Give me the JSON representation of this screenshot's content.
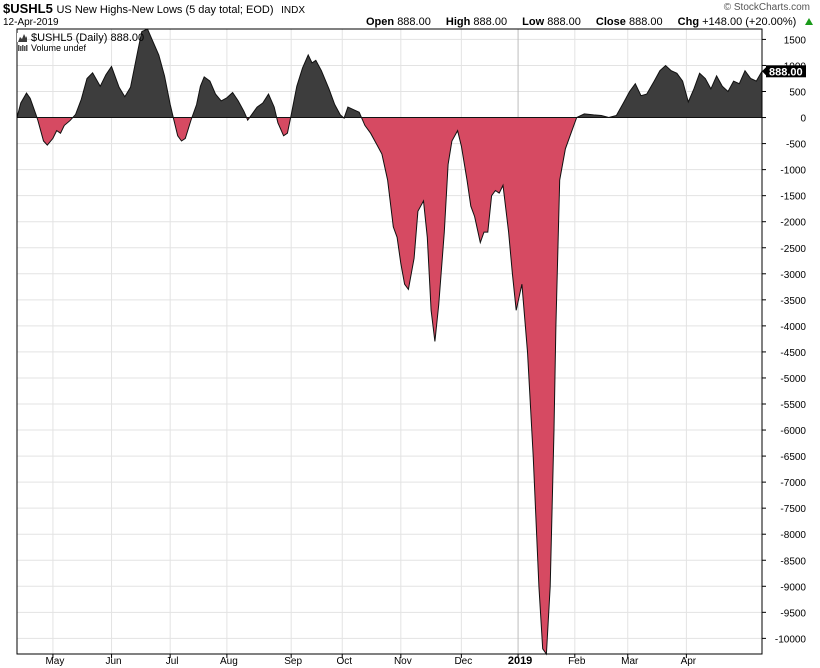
{
  "header": {
    "symbol": "$USHL5",
    "description": "US New Highs-New Lows (5 day total; EOD)",
    "exchange": "INDX",
    "date": "12-Apr-2019",
    "open_label": "Open",
    "open": "888.00",
    "high_label": "High",
    "high": "888.00",
    "low_label": "Low",
    "low": "888.00",
    "close_label": "Close",
    "close": "888.00",
    "chg_label": "Chg",
    "chg": "+148.00 (+20.00%)",
    "brand": "© StockCharts.com"
  },
  "legend": {
    "series": "$USHL5 (Daily) 888.00",
    "volume": "Volume undef"
  },
  "colors": {
    "positive_fill": "#3d3d3d",
    "negative_fill": "#d64a62",
    "grid": "#e3e3e3",
    "axis": "#000000",
    "badge_bg": "#000000",
    "badge_text": "#ffffff",
    "up_arrow": "#1a9a1a"
  },
  "chart_data": {
    "type": "area",
    "title": "$USHL5 US New Highs-New Lows (5 day total; EOD)",
    "ylim": [
      -10300,
      1700
    ],
    "yticks": [
      1500,
      1000,
      500,
      0,
      -500,
      -1000,
      -1500,
      -2000,
      -2500,
      -3000,
      -3500,
      -4000,
      -4500,
      -5000,
      -5500,
      -6000,
      -6500,
      -7000,
      -7500,
      -8000,
      -8500,
      -9000,
      -9500,
      -10000
    ],
    "ytick_labels": [
      "1500",
      "1000",
      "500",
      "0",
      "-500",
      "-1000",
      "-1500",
      "-2000",
      "-2500",
      "-3000",
      "-3500",
      "-4000",
      "-4500",
      "-5000",
      "-5500",
      "-6000",
      "-6500",
      "-7000",
      "-7500",
      "-8000",
      "-8500",
      "-9000",
      "-9500",
      "-10000"
    ],
    "last_value": "888.00",
    "x_start": "2018-04-12",
    "x_end": "2019-04-12",
    "x_ticks": [
      {
        "label": "May",
        "date": "2018-05-01"
      },
      {
        "label": "Jun",
        "date": "2018-06-01"
      },
      {
        "label": "Jul",
        "date": "2018-07-02"
      },
      {
        "label": "Aug",
        "date": "2018-08-01"
      },
      {
        "label": "Sep",
        "date": "2018-09-04"
      },
      {
        "label": "Oct",
        "date": "2018-10-01"
      },
      {
        "label": "Nov",
        "date": "2018-11-01"
      },
      {
        "label": "Dec",
        "date": "2018-12-03"
      },
      {
        "label": "2019",
        "date": "2019-01-02",
        "bold": true
      },
      {
        "label": "Feb",
        "date": "2019-02-01"
      },
      {
        "label": "Mar",
        "date": "2019-03-01"
      },
      {
        "label": "Apr",
        "date": "2019-04-01"
      }
    ],
    "points": [
      [
        "2018-04-12",
        0
      ],
      [
        "2018-04-14",
        280
      ],
      [
        "2018-04-17",
        470
      ],
      [
        "2018-04-19",
        370
      ],
      [
        "2018-04-22",
        60
      ],
      [
        "2018-04-23",
        -50
      ],
      [
        "2018-04-26",
        -450
      ],
      [
        "2018-04-28",
        -530
      ],
      [
        "2018-05-01",
        -400
      ],
      [
        "2018-05-03",
        -250
      ],
      [
        "2018-05-05",
        -300
      ],
      [
        "2018-05-07",
        -150
      ],
      [
        "2018-05-10",
        -60
      ],
      [
        "2018-05-13",
        60
      ],
      [
        "2018-05-16",
        350
      ],
      [
        "2018-05-19",
        750
      ],
      [
        "2018-05-22",
        860
      ],
      [
        "2018-05-26",
        600
      ],
      [
        "2018-05-29",
        820
      ],
      [
        "2018-06-01",
        980
      ],
      [
        "2018-06-05",
        580
      ],
      [
        "2018-06-08",
        400
      ],
      [
        "2018-06-11",
        580
      ],
      [
        "2018-06-15",
        1300
      ],
      [
        "2018-06-17",
        1650
      ],
      [
        "2018-06-20",
        1700
      ],
      [
        "2018-06-23",
        1450
      ],
      [
        "2018-06-26",
        1200
      ],
      [
        "2018-06-29",
        800
      ],
      [
        "2018-07-02",
        250
      ],
      [
        "2018-07-04",
        -50
      ],
      [
        "2018-07-06",
        -350
      ],
      [
        "2018-07-08",
        -450
      ],
      [
        "2018-07-10",
        -400
      ],
      [
        "2018-07-13",
        -50
      ],
      [
        "2018-07-16",
        250
      ],
      [
        "2018-07-18",
        600
      ],
      [
        "2018-07-20",
        780
      ],
      [
        "2018-07-23",
        700
      ],
      [
        "2018-07-26",
        450
      ],
      [
        "2018-07-29",
        320
      ],
      [
        "2018-08-01",
        380
      ],
      [
        "2018-08-04",
        480
      ],
      [
        "2018-08-07",
        320
      ],
      [
        "2018-08-10",
        120
      ],
      [
        "2018-08-12",
        -50
      ],
      [
        "2018-08-14",
        50
      ],
      [
        "2018-08-17",
        200
      ],
      [
        "2018-08-20",
        280
      ],
      [
        "2018-08-23",
        450
      ],
      [
        "2018-08-26",
        200
      ],
      [
        "2018-08-28",
        -100
      ],
      [
        "2018-08-31",
        -350
      ],
      [
        "2018-09-02",
        -300
      ],
      [
        "2018-09-04",
        50
      ],
      [
        "2018-09-07",
        600
      ],
      [
        "2018-09-10",
        950
      ],
      [
        "2018-09-13",
        1200
      ],
      [
        "2018-09-15",
        1050
      ],
      [
        "2018-09-17",
        1100
      ],
      [
        "2018-09-20",
        900
      ],
      [
        "2018-09-24",
        550
      ],
      [
        "2018-09-27",
        250
      ],
      [
        "2018-09-30",
        50
      ],
      [
        "2018-10-02",
        -10
      ],
      [
        "2018-10-04",
        200
      ],
      [
        "2018-10-07",
        150
      ],
      [
        "2018-10-10",
        100
      ],
      [
        "2018-10-13",
        -150
      ],
      [
        "2018-10-16",
        -300
      ],
      [
        "2018-10-19",
        -500
      ],
      [
        "2018-10-22",
        -700
      ],
      [
        "2018-10-25",
        -1200
      ],
      [
        "2018-10-28",
        -2100
      ],
      [
        "2018-10-30",
        -2300
      ],
      [
        "2018-11-01",
        -2800
      ],
      [
        "2018-11-03",
        -3200
      ],
      [
        "2018-11-05",
        -3300
      ],
      [
        "2018-11-08",
        -2700
      ],
      [
        "2018-11-10",
        -1800
      ],
      [
        "2018-11-13",
        -1600
      ],
      [
        "2018-11-15",
        -2300
      ],
      [
        "2018-11-17",
        -3700
      ],
      [
        "2018-11-19",
        -4300
      ],
      [
        "2018-11-21",
        -3600
      ],
      [
        "2018-11-24",
        -2200
      ],
      [
        "2018-11-26",
        -900
      ],
      [
        "2018-11-28",
        -450
      ],
      [
        "2018-12-01",
        -250
      ],
      [
        "2018-12-03",
        -550
      ],
      [
        "2018-12-06",
        -1200
      ],
      [
        "2018-12-08",
        -1700
      ],
      [
        "2018-12-10",
        -1900
      ],
      [
        "2018-12-13",
        -2400
      ],
      [
        "2018-12-15",
        -2200
      ],
      [
        "2018-12-17",
        -2200
      ],
      [
        "2018-12-19",
        -1500
      ],
      [
        "2018-12-21",
        -1400
      ],
      [
        "2018-12-23",
        -1450
      ],
      [
        "2018-12-25",
        -1300
      ],
      [
        "2018-12-28",
        -2200
      ],
      [
        "2018-12-30",
        -3000
      ],
      [
        "2019-01-01",
        -3700
      ],
      [
        "2019-01-04",
        -3200
      ],
      [
        "2019-01-07",
        -4500
      ],
      [
        "2019-01-10",
        -6500
      ],
      [
        "2019-01-13",
        -9000
      ],
      [
        "2019-01-15",
        -10200
      ],
      [
        "2019-01-17",
        -10300
      ],
      [
        "2019-01-19",
        -9000
      ],
      [
        "2019-01-21",
        -6000
      ],
      [
        "2019-01-22",
        -4000
      ],
      [
        "2019-01-24",
        -1200
      ],
      [
        "2019-01-27",
        -600
      ],
      [
        "2019-01-30",
        -300
      ],
      [
        "2019-02-02",
        0
      ],
      [
        "2019-02-06",
        70
      ],
      [
        "2019-02-11",
        50
      ],
      [
        "2019-02-15",
        40
      ],
      [
        "2019-02-19",
        0
      ],
      [
        "2019-02-23",
        40
      ],
      [
        "2019-02-27",
        300
      ],
      [
        "2019-03-02",
        500
      ],
      [
        "2019-03-05",
        650
      ],
      [
        "2019-03-08",
        420
      ],
      [
        "2019-03-11",
        450
      ],
      [
        "2019-03-15",
        700
      ],
      [
        "2019-03-18",
        900
      ],
      [
        "2019-03-21",
        1000
      ],
      [
        "2019-03-24",
        900
      ],
      [
        "2019-03-27",
        850
      ],
      [
        "2019-03-30",
        700
      ],
      [
        "2019-04-02",
        300
      ],
      [
        "2019-04-05",
        550
      ],
      [
        "2019-04-08",
        850
      ],
      [
        "2019-04-11",
        750
      ],
      [
        "2019-04-14",
        550
      ],
      [
        "2019-04-17",
        800
      ],
      [
        "2019-04-20",
        600
      ],
      [
        "2019-04-23",
        500
      ],
      [
        "2019-04-26",
        700
      ],
      [
        "2019-04-29",
        650
      ],
      [
        "2019-05-02",
        900
      ],
      [
        "2019-05-05",
        750
      ],
      [
        "2019-05-08",
        700
      ],
      [
        "2019-05-11",
        888
      ]
    ]
  }
}
